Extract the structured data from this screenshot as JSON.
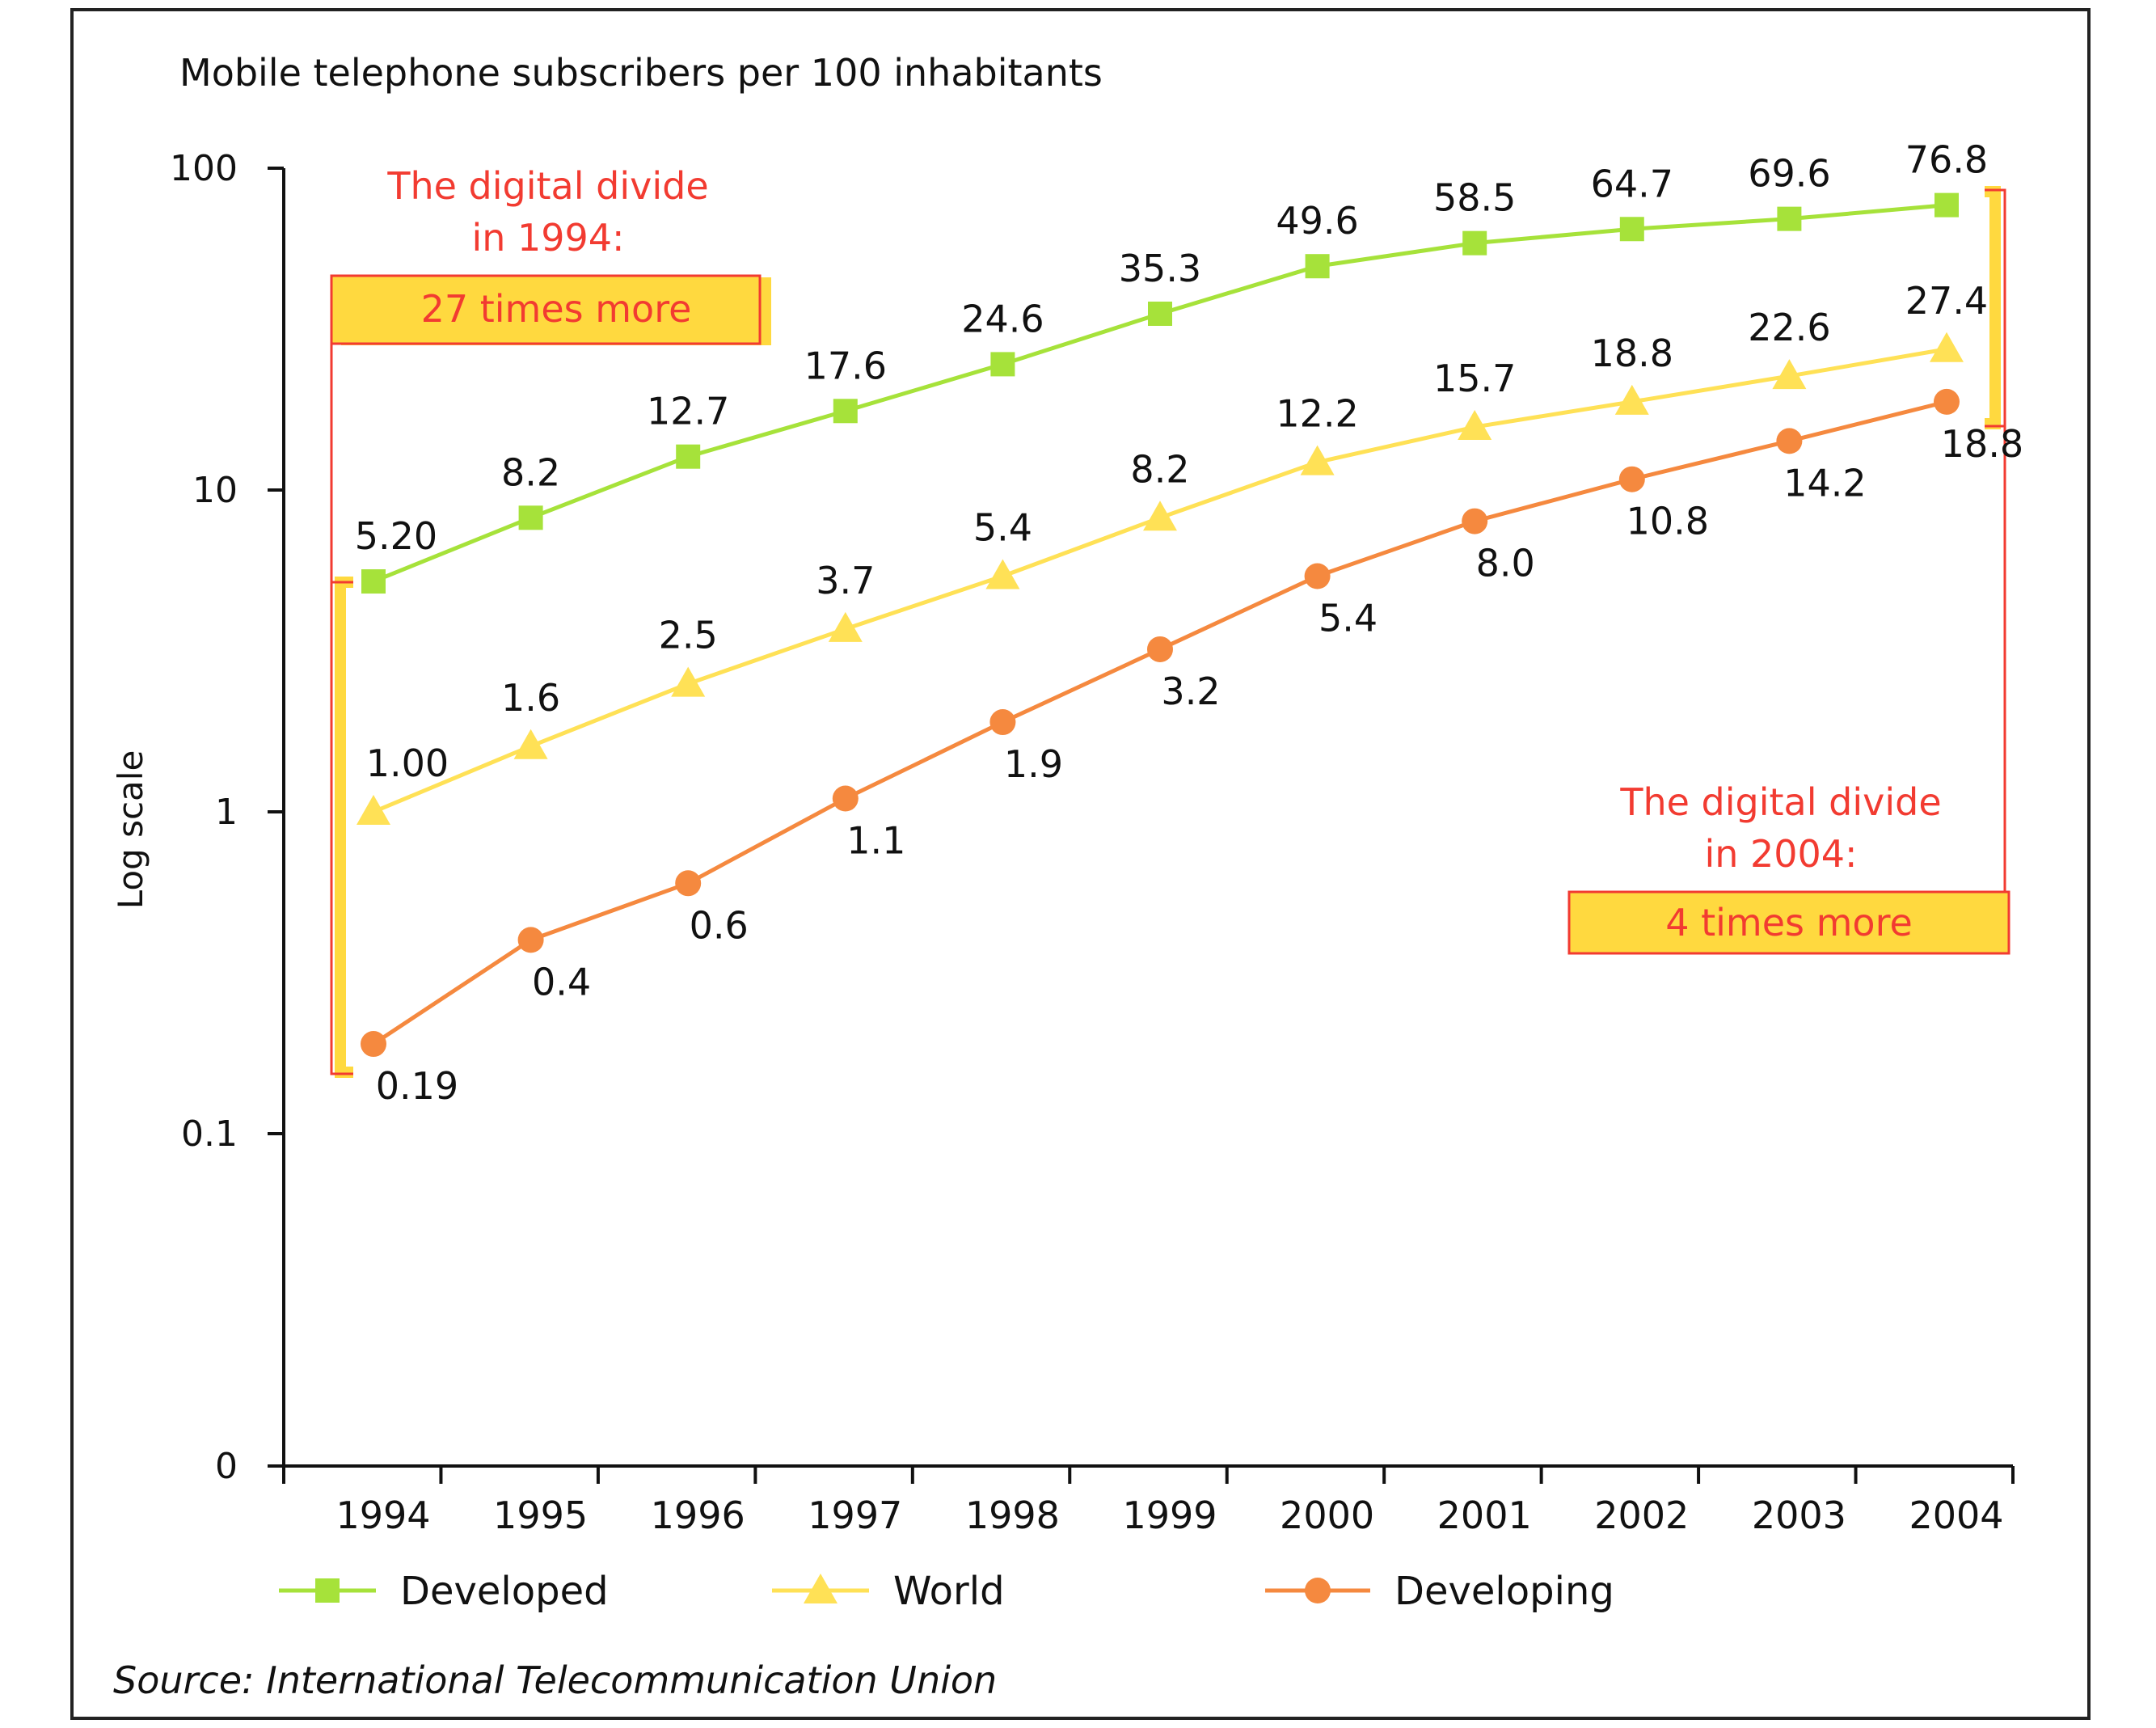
{
  "colors": {
    "developed": "#a6e23a",
    "world": "#ffe156",
    "developing": "#f5893f",
    "annotation_red": "#f23b31",
    "annotation_box_fill": "#ffd93f",
    "axis": "#111111",
    "text": "#111111"
  },
  "chart_data": {
    "type": "line",
    "title": "Mobile telephone subscribers per 100 inhabitants",
    "ylabel": "Log scale",
    "xlabel": "",
    "yscale": "log",
    "ylim": [
      0.1,
      100
    ],
    "y_ticks": [
      {
        "value": 100,
        "label": "100"
      },
      {
        "value": 10,
        "label": "10"
      },
      {
        "value": 1,
        "label": "1"
      },
      {
        "value": 0.1,
        "label": "0.1"
      },
      {
        "value": null,
        "label": "0"
      }
    ],
    "x": [
      "1994",
      "1995",
      "1996",
      "1997",
      "1998",
      "1999",
      "2000",
      "2001",
      "2002",
      "2003",
      "2004"
    ],
    "series": [
      {
        "name": "Developed",
        "marker": "square",
        "color_key": "developed",
        "values": [
          5.2,
          8.2,
          12.7,
          17.6,
          24.6,
          35.3,
          49.6,
          58.5,
          64.7,
          69.6,
          76.8
        ],
        "labels": [
          "5.20",
          "8.2",
          "12.7",
          "17.6",
          "24.6",
          "35.3",
          "49.6",
          "58.5",
          "64.7",
          "69.6",
          "76.8"
        ]
      },
      {
        "name": "World",
        "marker": "triangle",
        "color_key": "world",
        "values": [
          1.0,
          1.6,
          2.5,
          3.7,
          5.4,
          8.2,
          12.2,
          15.7,
          18.8,
          22.6,
          27.4
        ],
        "labels": [
          "1.00",
          "1.6",
          "2.5",
          "3.7",
          "5.4",
          "8.2",
          "12.2",
          "15.7",
          "18.8",
          "22.6",
          "27.4"
        ]
      },
      {
        "name": "Developing",
        "marker": "circle",
        "color_key": "developing",
        "values": [
          0.19,
          0.4,
          0.6,
          1.1,
          1.9,
          3.2,
          5.4,
          8.0,
          10.8,
          14.2,
          18.8
        ],
        "labels": [
          "0.19",
          "0.4",
          "0.6",
          "1.1",
          "1.9",
          "3.2",
          "5.4",
          "8.0",
          "10.8",
          "14.2",
          "18.8"
        ]
      }
    ],
    "annotations": [
      {
        "line1": "The digital divide",
        "line2": "in 1994:",
        "box": "27 times more"
      },
      {
        "line1": "The digital divide",
        "line2": "in 2004:",
        "box": "4 times more"
      }
    ],
    "legend_position": "bottom",
    "source": "Source: International Telecommunication Union"
  }
}
